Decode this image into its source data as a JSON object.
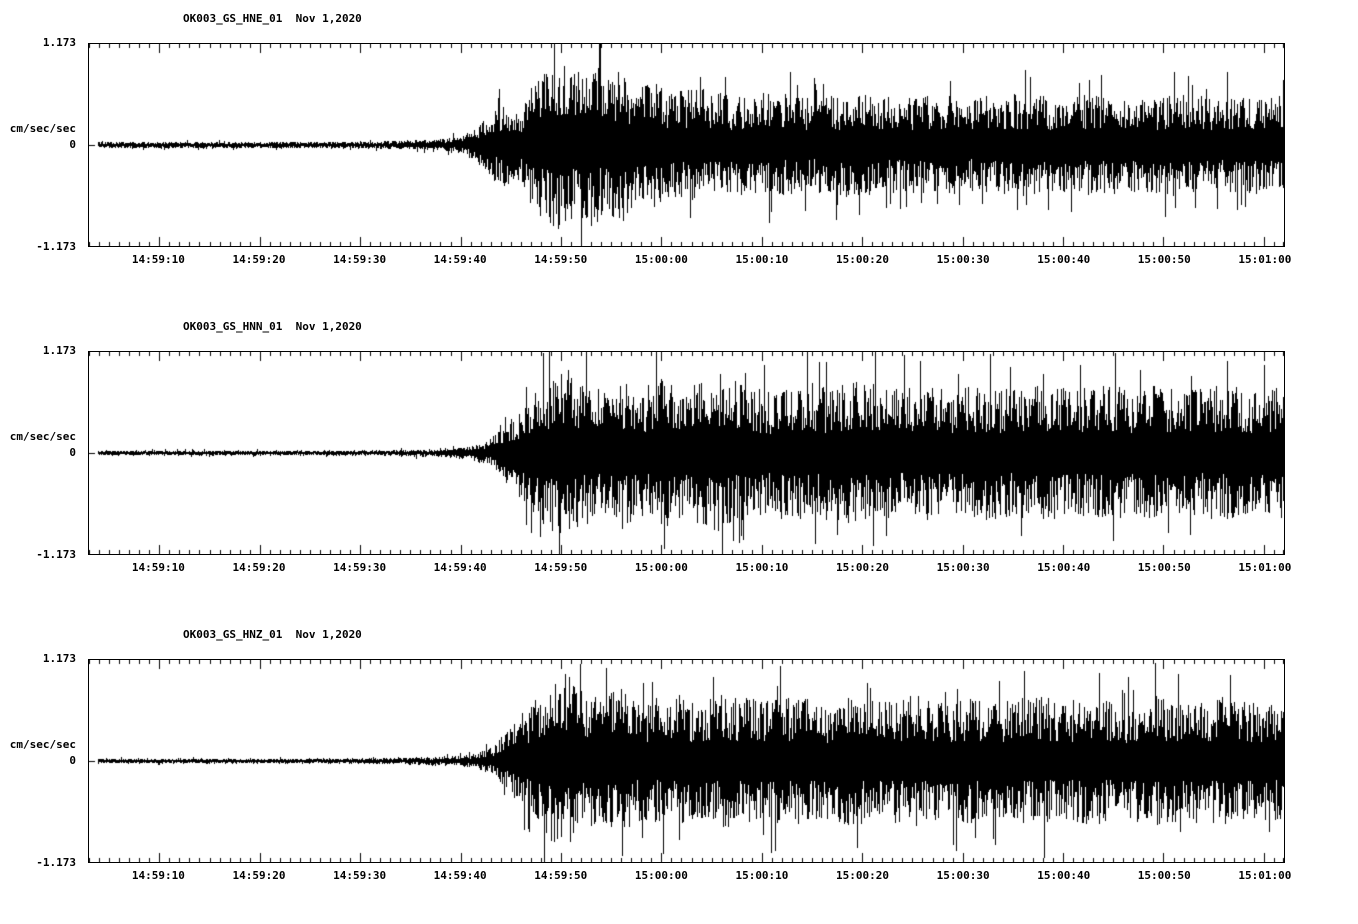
{
  "colors": {
    "trace": "#000000",
    "background": "#ffffff",
    "axis": "#000000"
  },
  "chart_data": [
    {
      "type": "line",
      "title": "OK003_GS_HNE_01  Nov 1,2020",
      "ylabel": "cm/sec/sec",
      "ytick_labels": [
        "1.173",
        "0",
        "-1.173"
      ],
      "ylim": [
        -1.173,
        1.173
      ],
      "xlim_seconds": [
        0,
        119
      ],
      "x_start_time": "14:59:03",
      "xticks": [
        "14:59:10",
        "14:59:20",
        "14:59:30",
        "14:59:40",
        "14:59:50",
        "15:00:00",
        "15:00:10",
        "15:00:20",
        "15:00:30",
        "15:00:40",
        "15:00:50",
        "15:01:00"
      ],
      "xtick_seconds": [
        7,
        17,
        27,
        37,
        47,
        57,
        67,
        77,
        87,
        97,
        107,
        117
      ],
      "seed": 101,
      "envelope": [
        [
          0.8,
          0.04
        ],
        [
          25,
          0.04
        ],
        [
          30,
          0.05
        ],
        [
          34,
          0.065
        ],
        [
          37,
          0.1
        ],
        [
          38.5,
          0.2
        ],
        [
          40,
          0.42
        ],
        [
          41.5,
          0.48
        ],
        [
          43,
          0.45
        ],
        [
          44,
          0.7
        ],
        [
          45.5,
          0.95
        ],
        [
          47,
          1.0
        ],
        [
          48.5,
          0.85
        ],
        [
          50,
          1.02
        ],
        [
          51.5,
          0.8
        ],
        [
          53,
          0.95
        ],
        [
          54.5,
          0.65
        ],
        [
          56,
          0.75
        ],
        [
          58,
          0.62
        ],
        [
          61,
          0.68
        ],
        [
          64,
          0.58
        ],
        [
          68,
          0.62
        ],
        [
          72,
          0.55
        ],
        [
          76,
          0.62
        ],
        [
          80,
          0.56
        ],
        [
          84,
          0.6
        ],
        [
          88,
          0.55
        ],
        [
          92,
          0.62
        ],
        [
          96,
          0.56
        ],
        [
          100,
          0.6
        ],
        [
          104,
          0.55
        ],
        [
          108,
          0.6
        ],
        [
          112,
          0.56
        ],
        [
          116,
          0.6
        ],
        [
          119,
          0.58
        ]
      ]
    },
    {
      "type": "line",
      "title": "OK003_GS_HNN_01  Nov 1,2020",
      "ylabel": "cm/sec/sec",
      "ytick_labels": [
        "1.173",
        "0",
        "-1.173"
      ],
      "ylim": [
        -1.173,
        1.173
      ],
      "xlim_seconds": [
        0,
        119
      ],
      "x_start_time": "14:59:03",
      "xticks": [
        "14:59:10",
        "14:59:20",
        "14:59:30",
        "14:59:40",
        "14:59:50",
        "15:00:00",
        "15:00:10",
        "15:00:20",
        "15:00:30",
        "15:00:40",
        "15:00:50",
        "15:01:00"
      ],
      "xtick_seconds": [
        7,
        17,
        27,
        37,
        47,
        57,
        67,
        77,
        87,
        97,
        107,
        117
      ],
      "seed": 202,
      "envelope": [
        [
          0.8,
          0.03
        ],
        [
          25,
          0.03
        ],
        [
          30,
          0.035
        ],
        [
          35,
          0.05
        ],
        [
          38,
          0.08
        ],
        [
          40,
          0.18
        ],
        [
          41.5,
          0.35
        ],
        [
          43,
          0.55
        ],
        [
          44.5,
          0.75
        ],
        [
          46,
          0.95
        ],
        [
          47.5,
          1.12
        ],
        [
          49,
          0.9
        ],
        [
          51,
          0.8
        ],
        [
          53,
          0.9
        ],
        [
          55,
          0.75
        ],
        [
          57,
          0.9
        ],
        [
          59,
          0.75
        ],
        [
          61,
          0.85
        ],
        [
          63,
          0.95
        ],
        [
          65,
          0.8
        ],
        [
          68,
          0.75
        ],
        [
          71,
          0.85
        ],
        [
          74,
          0.78
        ],
        [
          77,
          0.88
        ],
        [
          80,
          0.75
        ],
        [
          83,
          0.8
        ],
        [
          86,
          0.75
        ],
        [
          89,
          0.82
        ],
        [
          92,
          0.75
        ],
        [
          95,
          0.8
        ],
        [
          98,
          0.74
        ],
        [
          101,
          0.8
        ],
        [
          104,
          0.76
        ],
        [
          107,
          0.82
        ],
        [
          110,
          0.75
        ],
        [
          113,
          0.8
        ],
        [
          116,
          0.76
        ],
        [
          119,
          0.78
        ]
      ]
    },
    {
      "type": "line",
      "title": "OK003_GS_HNZ_01  Nov 1,2020",
      "ylabel": "cm/sec/sec",
      "ytick_labels": [
        "1.173",
        "0",
        "-1.173"
      ],
      "ylim": [
        -1.173,
        1.173
      ],
      "xlim_seconds": [
        0,
        119
      ],
      "x_start_time": "14:59:03",
      "xticks": [
        "14:59:10",
        "14:59:20",
        "14:59:30",
        "14:59:40",
        "14:59:50",
        "15:00:00",
        "15:00:10",
        "15:00:20",
        "15:00:30",
        "15:00:40",
        "15:00:50",
        "15:01:00"
      ],
      "xtick_seconds": [
        7,
        17,
        27,
        37,
        47,
        57,
        67,
        77,
        87,
        97,
        107,
        117
      ],
      "seed": 303,
      "envelope": [
        [
          0.8,
          0.03
        ],
        [
          25,
          0.03
        ],
        [
          31,
          0.04
        ],
        [
          35,
          0.055
        ],
        [
          38,
          0.08
        ],
        [
          40,
          0.15
        ],
        [
          41.5,
          0.35
        ],
        [
          43,
          0.55
        ],
        [
          44.5,
          0.8
        ],
        [
          46,
          0.95
        ],
        [
          47.5,
          1.05
        ],
        [
          49,
          0.85
        ],
        [
          51,
          0.75
        ],
        [
          53,
          0.85
        ],
        [
          55,
          0.7
        ],
        [
          58,
          0.8
        ],
        [
          61,
          0.72
        ],
        [
          64,
          0.8
        ],
        [
          67,
          0.7
        ],
        [
          70,
          0.78
        ],
        [
          73,
          0.68
        ],
        [
          76,
          0.78
        ],
        [
          79,
          0.7
        ],
        [
          82,
          0.78
        ],
        [
          85,
          0.68
        ],
        [
          88,
          0.76
        ],
        [
          91,
          0.7
        ],
        [
          94,
          0.8
        ],
        [
          97,
          0.7
        ],
        [
          100,
          0.76
        ],
        [
          103,
          0.68
        ],
        [
          106,
          0.78
        ],
        [
          109,
          0.7
        ],
        [
          112,
          0.78
        ],
        [
          115,
          0.7
        ],
        [
          119,
          0.74
        ]
      ]
    }
  ]
}
